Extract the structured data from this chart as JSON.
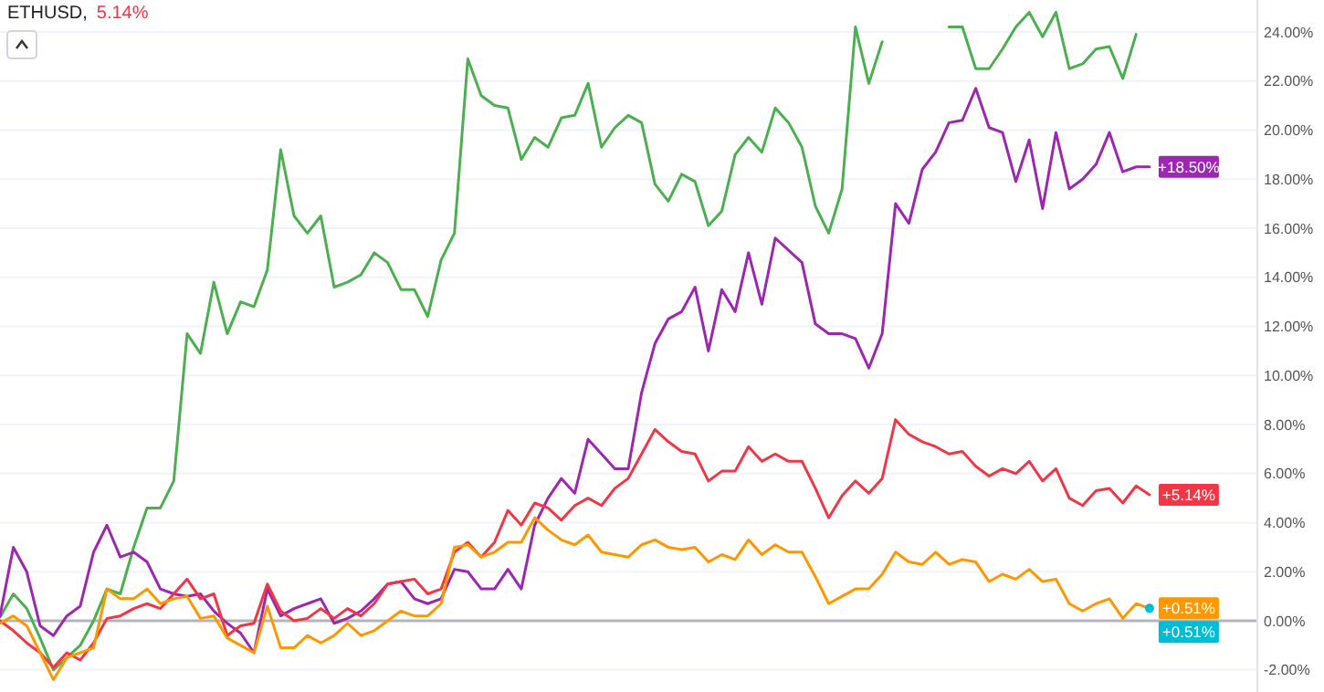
{
  "chart_data": {
    "type": "line",
    "title": "ETHUSD,",
    "subtitle": "5.14%",
    "categories": [
      null,
      null,
      null,
      null,
      null,
      null,
      null,
      null,
      null,
      null,
      null,
      null,
      null,
      null,
      null,
      null,
      null,
      null,
      null,
      null,
      null,
      null,
      null,
      null,
      null,
      null,
      null,
      null,
      null,
      null,
      null,
      null,
      null,
      null,
      null,
      null,
      null,
      null,
      null,
      null,
      null,
      null,
      null,
      null,
      null,
      null,
      null,
      null,
      null,
      null,
      null,
      null,
      null,
      null,
      null,
      null,
      null,
      null,
      null,
      null,
      null,
      null,
      null,
      null,
      null,
      null,
      null,
      null,
      null,
      null,
      null,
      null,
      null,
      null,
      null,
      null,
      null,
      null,
      null,
      null,
      null,
      null,
      null,
      null,
      null,
      null,
      null,
      null,
      null,
      null,
      null,
      null,
      null,
      null,
      null
    ],
    "series": [
      {
        "color": "#4caf50",
        "values": [
          0.15,
          1.1,
          0.5,
          -0.7,
          -2.0,
          -1.5,
          -1.0,
          0.0,
          1.3,
          1.1,
          3.0,
          4.6,
          4.6,
          5.7,
          11.7,
          10.9,
          13.8,
          11.7,
          13.0,
          12.8,
          14.3,
          19.2,
          16.5,
          15.8,
          16.5,
          13.6,
          13.8,
          14.1,
          15.0,
          14.6,
          13.5,
          13.5,
          12.4,
          14.7,
          15.8,
          22.9,
          21.4,
          21.0,
          20.9,
          18.8,
          19.7,
          19.3,
          20.5,
          20.6,
          21.9,
          19.3,
          20.1,
          20.6,
          20.3,
          17.8,
          17.1,
          18.2,
          17.9,
          16.1,
          16.7,
          19.0,
          19.7,
          19.1,
          20.9,
          20.3,
          19.3,
          16.9,
          15.8,
          17.6,
          24.2,
          21.9,
          23.6,
          null,
          null,
          null,
          null,
          24.2,
          24.2,
          22.5,
          22.5,
          23.3,
          24.2,
          24.8,
          23.8,
          24.8,
          22.5,
          22.7,
          23.3,
          23.4,
          22.1,
          23.9,
          null,
          null,
          null,
          null,
          null,
          null,
          null,
          null,
          null
        ]
      },
      {
        "color": "#9c27b0",
        "values": [
          0.2,
          3.0,
          2.0,
          -0.2,
          -0.6,
          0.2,
          0.6,
          2.8,
          3.9,
          2.6,
          2.8,
          2.4,
          1.3,
          1.1,
          1.0,
          1.1,
          0.4,
          -0.1,
          -0.5,
          -1.3,
          1.3,
          0.2,
          0.5,
          0.7,
          0.9,
          -0.1,
          0.1,
          0.4,
          0.9,
          1.5,
          1.6,
          0.9,
          0.7,
          0.9,
          2.1,
          2.0,
          1.3,
          1.3,
          2.1,
          1.3,
          3.9,
          5.0,
          5.8,
          5.2,
          7.4,
          6.8,
          6.2,
          6.2,
          9.3,
          11.3,
          12.3,
          12.6,
          13.6,
          11.0,
          13.5,
          12.6,
          15.0,
          12.9,
          15.6,
          15.1,
          14.6,
          12.1,
          11.7,
          11.7,
          11.5,
          10.3,
          11.7,
          17.0,
          16.2,
          18.4,
          19.1,
          20.3,
          20.4,
          21.7,
          20.1,
          19.9,
          17.9,
          19.6,
          16.8,
          19.9,
          17.6,
          18.0,
          18.6,
          19.9,
          18.3,
          18.5,
          18.5,
          null,
          null,
          null,
          null,
          null,
          null,
          null,
          null
        ],
        "value_labels": [
          null,
          null,
          null,
          null,
          null,
          null,
          null,
          null,
          null,
          null,
          null,
          null,
          null,
          null,
          null,
          null,
          null,
          null,
          null,
          null,
          null,
          null,
          null,
          null,
          null,
          null,
          null,
          null,
          null,
          null,
          null,
          null,
          null,
          null,
          null,
          null,
          null,
          null,
          null,
          null,
          null,
          null,
          null,
          null,
          null,
          null,
          null,
          null,
          null,
          null,
          null,
          null,
          null,
          null,
          null,
          null,
          null,
          null,
          null,
          null,
          null,
          null,
          null,
          null,
          null,
          null,
          null,
          null,
          null,
          null,
          null,
          null,
          null,
          null,
          null,
          null,
          null,
          null,
          null,
          null,
          null,
          null,
          null,
          null,
          null,
          null,
          "+18.50%",
          null,
          null,
          null,
          null,
          null,
          null,
          null,
          null
        ]
      },
      {
        "color": "#f23645",
        "values": [
          0.0,
          -0.4,
          -0.9,
          -1.3,
          -1.9,
          -1.3,
          -1.6,
          -0.9,
          0.1,
          0.2,
          0.5,
          0.7,
          0.5,
          1.1,
          1.7,
          0.9,
          1.1,
          -0.6,
          -0.2,
          -0.1,
          1.5,
          0.4,
          0.0,
          0.1,
          0.5,
          0.1,
          0.5,
          0.2,
          0.7,
          1.5,
          1.6,
          1.7,
          1.1,
          1.3,
          2.8,
          3.2,
          2.6,
          3.2,
          4.5,
          3.9,
          4.8,
          4.6,
          4.1,
          4.7,
          5.0,
          4.7,
          5.4,
          5.8,
          6.8,
          7.8,
          7.3,
          6.9,
          6.8,
          5.7,
          6.1,
          6.1,
          7.1,
          6.5,
          6.8,
          6.5,
          6.5,
          5.4,
          4.2,
          5.1,
          5.7,
          5.2,
          5.8,
          8.2,
          7.6,
          7.3,
          7.1,
          6.8,
          6.9,
          6.3,
          5.9,
          6.2,
          6.0,
          6.5,
          5.7,
          6.2,
          5.0,
          4.7,
          5.3,
          5.4,
          4.8,
          5.5,
          5.14,
          null,
          null,
          null,
          null,
          null,
          null,
          null,
          null
        ],
        "value_labels": [
          null,
          null,
          null,
          null,
          null,
          null,
          null,
          null,
          null,
          null,
          null,
          null,
          null,
          null,
          null,
          null,
          null,
          null,
          null,
          null,
          null,
          null,
          null,
          null,
          null,
          null,
          null,
          null,
          null,
          null,
          null,
          null,
          null,
          null,
          null,
          null,
          null,
          null,
          null,
          null,
          null,
          null,
          null,
          null,
          null,
          null,
          null,
          null,
          null,
          null,
          null,
          null,
          null,
          null,
          null,
          null,
          null,
          null,
          null,
          null,
          null,
          null,
          null,
          null,
          null,
          null,
          null,
          null,
          null,
          null,
          null,
          null,
          null,
          null,
          null,
          null,
          null,
          null,
          null,
          null,
          null,
          null,
          null,
          null,
          null,
          null,
          "+5.14%",
          null,
          null,
          null,
          null,
          null,
          null,
          null,
          null
        ]
      },
      {
        "color": "#ff9800",
        "values": [
          -0.1,
          0.2,
          -0.2,
          -1.3,
          -2.4,
          -1.5,
          -1.3,
          -1.1,
          1.3,
          0.9,
          0.9,
          1.3,
          0.7,
          0.9,
          1.0,
          0.1,
          0.2,
          -0.7,
          -1.0,
          -1.3,
          0.6,
          -1.1,
          -1.1,
          -0.6,
          -0.9,
          -0.6,
          -0.1,
          -0.6,
          -0.4,
          0.0,
          0.4,
          0.2,
          0.2,
          0.7,
          3.0,
          3.1,
          2.6,
          2.8,
          3.2,
          3.2,
          4.2,
          3.7,
          3.3,
          3.1,
          3.5,
          2.8,
          2.7,
          2.6,
          3.1,
          3.3,
          3.0,
          2.9,
          3.0,
          2.4,
          2.7,
          2.5,
          3.3,
          2.7,
          3.1,
          2.8,
          2.8,
          1.8,
          0.7,
          1.0,
          1.3,
          1.3,
          1.9,
          2.8,
          2.4,
          2.3,
          2.8,
          2.3,
          2.5,
          2.4,
          1.6,
          1.9,
          1.7,
          2.1,
          1.6,
          1.7,
          0.7,
          0.4,
          0.7,
          0.9,
          0.1,
          0.7,
          0.51,
          null,
          null,
          null,
          null,
          null,
          null,
          null,
          null
        ],
        "value_labels": [
          null,
          null,
          null,
          null,
          null,
          null,
          null,
          null,
          null,
          null,
          null,
          null,
          null,
          null,
          null,
          null,
          null,
          null,
          null,
          null,
          null,
          null,
          null,
          null,
          null,
          null,
          null,
          null,
          null,
          null,
          null,
          null,
          null,
          null,
          null,
          null,
          null,
          null,
          null,
          null,
          null,
          null,
          null,
          null,
          null,
          null,
          null,
          null,
          null,
          null,
          null,
          null,
          null,
          null,
          null,
          null,
          null,
          null,
          null,
          null,
          null,
          null,
          null,
          null,
          null,
          null,
          null,
          null,
          null,
          null,
          null,
          null,
          null,
          null,
          null,
          null,
          null,
          null,
          null,
          null,
          null,
          null,
          null,
          null,
          null,
          null,
          "+0.51%",
          null,
          null,
          null,
          null,
          null,
          null,
          null,
          null
        ]
      },
      {
        "color": "#00bcd4",
        "marker": "circle",
        "values": [
          null,
          null,
          null,
          null,
          null,
          null,
          null,
          null,
          null,
          null,
          null,
          null,
          null,
          null,
          null,
          null,
          null,
          null,
          null,
          null,
          null,
          null,
          null,
          null,
          null,
          null,
          null,
          null,
          null,
          null,
          null,
          null,
          null,
          null,
          null,
          null,
          null,
          null,
          null,
          null,
          null,
          null,
          null,
          null,
          null,
          null,
          null,
          null,
          null,
          null,
          null,
          null,
          null,
          null,
          null,
          null,
          null,
          null,
          null,
          null,
          null,
          null,
          null,
          null,
          null,
          null,
          null,
          null,
          null,
          null,
          null,
          null,
          null,
          null,
          null,
          null,
          null,
          null,
          null,
          null,
          null,
          null,
          null,
          null,
          null,
          null,
          0.51,
          null,
          null,
          null,
          null,
          null,
          null,
          null,
          null
        ],
        "value_labels": [
          null,
          null,
          null,
          null,
          null,
          null,
          null,
          null,
          null,
          null,
          null,
          null,
          null,
          null,
          null,
          null,
          null,
          null,
          null,
          null,
          null,
          null,
          null,
          null,
          null,
          null,
          null,
          null,
          null,
          null,
          null,
          null,
          null,
          null,
          null,
          null,
          null,
          null,
          null,
          null,
          null,
          null,
          null,
          null,
          null,
          null,
          null,
          null,
          null,
          null,
          null,
          null,
          null,
          null,
          null,
          null,
          null,
          null,
          null,
          null,
          null,
          null,
          null,
          null,
          null,
          null,
          null,
          null,
          null,
          null,
          null,
          null,
          null,
          null,
          null,
          null,
          null,
          null,
          null,
          null,
          null,
          null,
          null,
          null,
          null,
          null,
          "+0.51%",
          null,
          null,
          null,
          null,
          null,
          null,
          null,
          null
        ]
      }
    ],
    "ylim": [
      -2.9,
      25.3
    ],
    "yticks": [
      {
        "value": -2,
        "label": "-2.00%"
      },
      {
        "value": 0,
        "label": "0.00%"
      },
      {
        "value": 2,
        "label": "2.00%"
      },
      {
        "value": 4,
        "label": "4.00%"
      },
      {
        "value": 6,
        "label": "6.00%"
      },
      {
        "value": 8,
        "label": "8.00%"
      },
      {
        "value": 10,
        "label": "10.00%"
      },
      {
        "value": 12,
        "label": "12.00%"
      },
      {
        "value": 14,
        "label": "14.00%"
      },
      {
        "value": 16,
        "label": "16.00%"
      },
      {
        "value": 18,
        "label": "18.00%"
      },
      {
        "value": 20,
        "label": "20.00%"
      },
      {
        "value": 22,
        "label": "22.00%"
      },
      {
        "value": 24,
        "label": "24.00%"
      }
    ],
    "grid": "y",
    "ref_lines": [
      {
        "axis": "y",
        "value": 0,
        "color": "#b2b5be"
      }
    ]
  }
}
